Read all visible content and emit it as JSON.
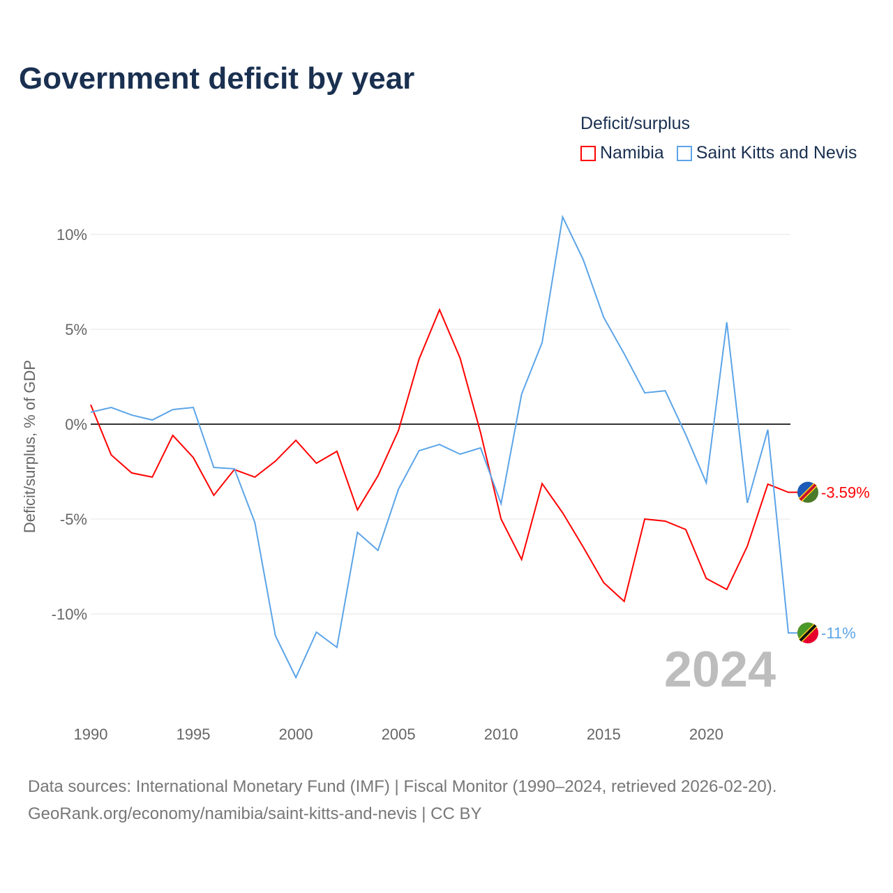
{
  "title": "Government deficit by year",
  "legend": {
    "title": "Deficit/surplus"
  },
  "footer": {
    "line1": "Data sources: International Monetary Fund (IMF) | Fiscal Monitor (1990–2024, retrieved 2026-02-20).",
    "line2": "GeoRank.org/economy/namibia/saint-kitts-and-nevis | CC BY"
  },
  "chart_data": {
    "type": "line",
    "title": "Government deficit by year",
    "ylabel": "Deficit/surplus, % of GDP",
    "xlabel": "",
    "year_label": "2024",
    "xlim": [
      1990,
      2024
    ],
    "ylim": [
      -15,
      11
    ],
    "x_ticks": [
      1990,
      1995,
      2000,
      2005,
      2010,
      2015,
      2020
    ],
    "y_ticks": [
      {
        "v": 10,
        "label": "10%"
      },
      {
        "v": 5,
        "label": "5%"
      },
      {
        "v": 0,
        "label": "0%"
      },
      {
        "v": -5,
        "label": "-5%"
      },
      {
        "v": -10,
        "label": "-10%"
      }
    ],
    "x": [
      1990,
      1991,
      1992,
      1993,
      1994,
      1995,
      1996,
      1997,
      1998,
      1999,
      2000,
      2001,
      2002,
      2003,
      2004,
      2005,
      2006,
      2007,
      2008,
      2009,
      2010,
      2011,
      2012,
      2013,
      2014,
      2015,
      2016,
      2017,
      2018,
      2019,
      2020,
      2021,
      2022,
      2023,
      2024
    ],
    "series": [
      {
        "name": "Namibia",
        "color": "#ff0000",
        "end_label": "-3.59%",
        "values": [
          1.03,
          -1.62,
          -2.57,
          -2.79,
          -0.59,
          -1.76,
          -3.75,
          -2.39,
          -2.79,
          -1.95,
          -0.85,
          -2.06,
          -1.43,
          -4.52,
          -2.72,
          -0.33,
          3.42,
          6.03,
          3.49,
          -0.44,
          -5.0,
          -7.13,
          -3.13,
          -4.67,
          -6.47,
          -8.35,
          -9.34,
          -5.0,
          -5.11,
          -5.55,
          -8.13,
          -8.71,
          -6.43,
          -3.16,
          -3.59
        ]
      },
      {
        "name": "Saint Kitts and Nevis",
        "color": "#5ba4e8",
        "end_label": "-11%",
        "values": [
          0.63,
          0.88,
          0.48,
          0.22,
          0.77,
          0.88,
          -2.28,
          -2.35,
          -5.18,
          -11.14,
          -13.35,
          -10.96,
          -11.76,
          -5.7,
          -6.65,
          -3.42,
          -1.4,
          -1.07,
          -1.58,
          -1.25,
          -4.19,
          1.58,
          4.3,
          10.92,
          8.68,
          5.63,
          3.71,
          1.65,
          1.76,
          -0.55,
          -3.09,
          5.37,
          -4.15,
          -0.29,
          -11.0
        ]
      }
    ]
  }
}
